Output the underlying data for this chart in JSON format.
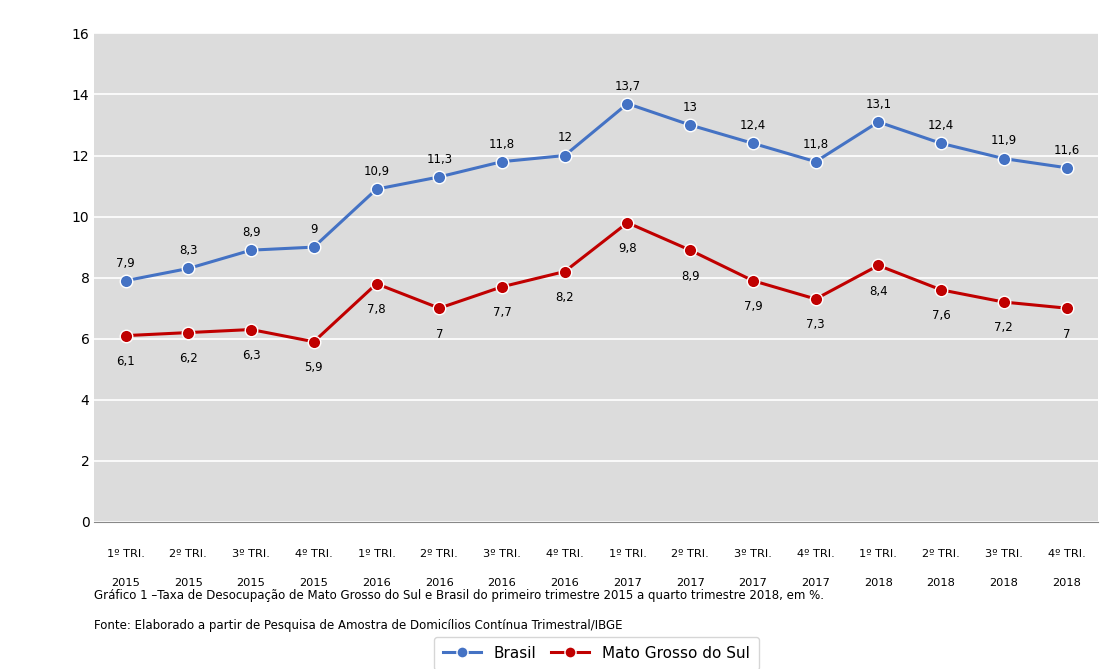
{
  "x_labels_line1": [
    "1º TRI.",
    "2º TRI.",
    "3º TRI.",
    "4º TRI.",
    "1º TRI.",
    "2º TRI.",
    "3º TRI.",
    "4º TRI.",
    "1º TRI.",
    "2º TRI.",
    "3º TRI.",
    "4º TRI.",
    "1º TRI.",
    "2º TRI.",
    "3º TRI.",
    "4º TRI."
  ],
  "x_labels_line2": [
    "2015",
    "2015",
    "2015",
    "2015",
    "2016",
    "2016",
    "2016",
    "2016",
    "2017",
    "2017",
    "2017",
    "2017",
    "2018",
    "2018",
    "2018",
    "2018"
  ],
  "brasil": [
    7.9,
    8.3,
    8.9,
    9.0,
    10.9,
    11.3,
    11.8,
    12.0,
    13.7,
    13.0,
    12.4,
    11.8,
    13.1,
    12.4,
    11.9,
    11.6
  ],
  "mato_grosso": [
    6.1,
    6.2,
    6.3,
    5.9,
    7.8,
    7.0,
    7.7,
    8.2,
    9.8,
    8.9,
    7.9,
    7.3,
    8.4,
    7.6,
    7.2,
    7.0
  ],
  "brasil_color": "#4472C4",
  "mato_grosso_color": "#C00000",
  "plot_bg_color": "#DCDCDC",
  "fig_bg_color": "#FFFFFF",
  "ylim": [
    0,
    16
  ],
  "yticks": [
    0,
    2,
    4,
    6,
    8,
    10,
    12,
    14,
    16
  ],
  "caption_line1": "Gráfico 1 –Taxa de Desocupação de Mato Grosso do Sul e Brasil do primeiro trimestre 2015 a quarto trimestre 2018, em %.",
  "caption_line2": "Fonte: Elaborado a partir de Pesquisa de Amostra de Domicílios Contínua Trimestral/IBGE",
  "legend_brasil": "Brasil",
  "legend_ms": "Mato Grosso do Sul",
  "marker_size": 9,
  "linewidth": 2.2
}
